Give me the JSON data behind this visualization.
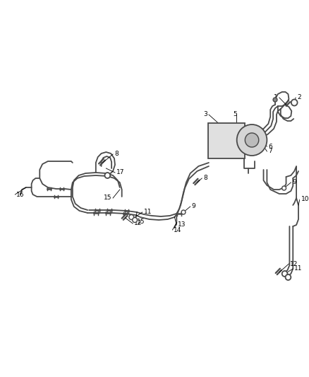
{
  "bg_color": "#ffffff",
  "line_color": "#4a4a4a",
  "label_color": "#000000",
  "label_fontsize": 6.5,
  "line_width": 1.3,
  "figsize": [
    4.38,
    5.33
  ],
  "dpi": 100
}
